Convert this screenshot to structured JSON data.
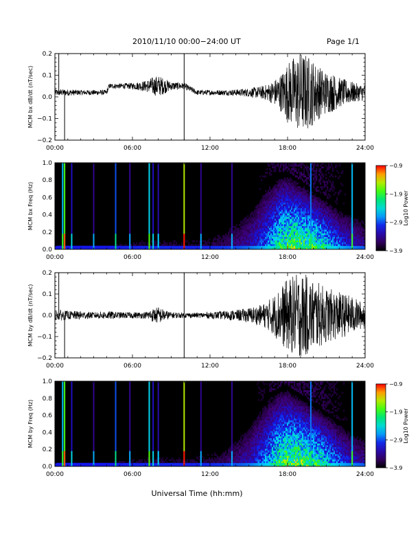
{
  "header": {
    "title": "2010/11/10   00:00−24:00 UT",
    "page": "Page 1/1"
  },
  "xlabel": "Universal Time (hh:mm)",
  "chart_data": [
    {
      "type": "line",
      "ylabel": "MCM bx dB/dt (nT/sec)",
      "xlim": [
        0,
        24
      ],
      "ylim": [
        -0.2,
        0.2
      ],
      "xticks": [
        "00:00",
        "06:00",
        "12:00",
        "18:00",
        "24:00"
      ],
      "yticks": [
        "−0.2",
        "−0.1",
        "0.0",
        "0.1",
        "0.2"
      ],
      "envelope": {
        "x": [
          0,
          0.5,
          1,
          2,
          3,
          4,
          4.2,
          5,
          6,
          7,
          7.5,
          8,
          8.5,
          9,
          10,
          11,
          12,
          13,
          14,
          15,
          16,
          16.5,
          17,
          17.5,
          18,
          18.5,
          19,
          19.5,
          20,
          20.5,
          21,
          21.5,
          22,
          22.5,
          23,
          23.5,
          24
        ],
        "baseline": [
          0.02,
          0.02,
          0.02,
          0.02,
          0.02,
          0.02,
          0.05,
          0.05,
          0.05,
          0.05,
          0.05,
          0.05,
          0.05,
          0.05,
          0.05,
          0.02,
          0.02,
          0.02,
          0.02,
          0.02,
          0.02,
          0.02,
          0.02,
          0.02,
          0.02,
          0.02,
          0.02,
          0.02,
          0.02,
          0.02,
          0.02,
          0.02,
          0.02,
          0.02,
          0.02,
          0.02,
          0.02
        ],
        "amplitude": [
          0.015,
          0.015,
          0.015,
          0.012,
          0.012,
          0.012,
          0.012,
          0.012,
          0.015,
          0.025,
          0.04,
          0.05,
          0.035,
          0.02,
          0.015,
          0.012,
          0.012,
          0.012,
          0.015,
          0.02,
          0.03,
          0.04,
          0.06,
          0.09,
          0.14,
          0.17,
          0.19,
          0.18,
          0.15,
          0.12,
          0.1,
          0.09,
          0.07,
          0.06,
          0.05,
          0.04,
          0.04
        ]
      },
      "spikes": [
        {
          "x": 0.3,
          "y": 0.2
        },
        {
          "x": 0.75,
          "y": -0.2
        },
        {
          "x": 10.0,
          "y": -0.2
        },
        {
          "x": 10.0,
          "y": 0.2
        }
      ]
    },
    {
      "type": "heatmap",
      "ylabel": "MCM bx Freq (Hz)",
      "xlim": [
        0,
        24
      ],
      "ylim": [
        0,
        1.0
      ],
      "xticks": [
        "00:00",
        "06:00",
        "12:00",
        "18:00",
        "24:00"
      ],
      "yticks": [
        "0.0",
        "0.2",
        "0.4",
        "0.6",
        "0.8",
        "1.0"
      ],
      "colorbar": {
        "label": "Log10 Power",
        "ticks": [
          "−0.9",
          "−1.9",
          "−2.9",
          "−3.9"
        ],
        "range": [
          -3.9,
          -0.9
        ]
      },
      "activity": {
        "x": [
          0,
          2,
          4,
          6,
          8,
          10,
          12,
          13,
          14,
          15,
          16,
          16.5,
          17,
          17.5,
          18,
          18.5,
          19,
          19.5,
          20,
          20.5,
          21,
          21.5,
          22,
          23,
          24
        ],
        "level": [
          0.08,
          0.08,
          0.08,
          0.1,
          0.12,
          0.1,
          0.12,
          0.15,
          0.2,
          0.3,
          0.45,
          0.55,
          0.7,
          0.85,
          0.9,
          0.95,
          0.95,
          0.9,
          0.85,
          0.8,
          0.7,
          0.6,
          0.5,
          0.35,
          0.25
        ],
        "top_freq": [
          0.15,
          0.15,
          0.15,
          0.2,
          0.2,
          0.2,
          0.25,
          0.3,
          0.4,
          0.5,
          0.7,
          0.8,
          0.85,
          0.9,
          0.9,
          0.85,
          0.8,
          0.75,
          0.7,
          0.65,
          0.6,
          0.55,
          0.5,
          0.45,
          0.4
        ]
      },
      "vertical_lines": [
        {
          "x": 0.6,
          "power": -2.6
        },
        {
          "x": 0.75,
          "power": -1.8
        },
        {
          "x": 1.3,
          "power": -3.2
        },
        {
          "x": 3.0,
          "power": -3.4
        },
        {
          "x": 4.7,
          "power": -2.9
        },
        {
          "x": 5.8,
          "power": -3.4
        },
        {
          "x": 7.3,
          "power": -2.5
        },
        {
          "x": 7.6,
          "power": -3.2
        },
        {
          "x": 8.0,
          "power": -3.3
        },
        {
          "x": 10.0,
          "power": -1.5
        },
        {
          "x": 11.3,
          "power": -3.4
        },
        {
          "x": 13.7,
          "power": -3.4
        },
        {
          "x": 19.8,
          "power": -2.8
        },
        {
          "x": 23.0,
          "power": -2.6
        }
      ]
    },
    {
      "type": "line",
      "ylabel": "MCM by dB/dt (nT/sec)",
      "xlim": [
        0,
        24
      ],
      "ylim": [
        -0.2,
        0.2
      ],
      "xticks": [
        "00:00",
        "06:00",
        "12:00",
        "18:00",
        "24:00"
      ],
      "yticks": [
        "−0.2",
        "−0.1",
        "0.0",
        "0.1",
        "0.2"
      ],
      "envelope": {
        "x": [
          0,
          0.5,
          1,
          2,
          3,
          4,
          5,
          6,
          7,
          7.5,
          8,
          8.5,
          9,
          10,
          11,
          12,
          13,
          14,
          15,
          16,
          16.5,
          17,
          17.5,
          18,
          18.5,
          19,
          19.5,
          20,
          20.5,
          21,
          21.5,
          22,
          22.5,
          23,
          23.5,
          24
        ],
        "baseline": [
          0.0,
          0.0,
          0.0,
          0.0,
          0.0,
          0.0,
          0.0,
          0.0,
          0.0,
          0.0,
          0.0,
          0.0,
          0.0,
          0.0,
          0.0,
          0.0,
          0.0,
          0.0,
          0.0,
          0.0,
          0.0,
          0.0,
          0.0,
          0.0,
          0.0,
          0.0,
          0.0,
          0.0,
          0.0,
          0.0,
          0.0,
          0.0,
          0.0,
          0.0,
          0.0,
          0.0
        ],
        "amplitude": [
          0.02,
          0.025,
          0.02,
          0.02,
          0.015,
          0.02,
          0.015,
          0.015,
          0.015,
          0.03,
          0.04,
          0.025,
          0.015,
          0.012,
          0.012,
          0.015,
          0.02,
          0.025,
          0.035,
          0.05,
          0.07,
          0.1,
          0.14,
          0.17,
          0.19,
          0.2,
          0.19,
          0.17,
          0.15,
          0.13,
          0.12,
          0.11,
          0.1,
          0.09,
          0.07,
          0.06
        ]
      },
      "spikes": [
        {
          "x": 0.3,
          "y": 0.2
        },
        {
          "x": 0.75,
          "y": -0.2
        },
        {
          "x": 10.0,
          "y": -0.2
        },
        {
          "x": 10.0,
          "y": 0.2
        }
      ]
    },
    {
      "type": "heatmap",
      "ylabel": "MCM by Freq (Hz)",
      "xlim": [
        0,
        24
      ],
      "ylim": [
        0,
        1.0
      ],
      "xticks": [
        "00:00",
        "06:00",
        "12:00",
        "18:00",
        "24:00"
      ],
      "yticks": [
        "0.0",
        "0.2",
        "0.4",
        "0.6",
        "0.8",
        "1.0"
      ],
      "colorbar": {
        "label": "Log10 Power",
        "ticks": [
          "−0.9",
          "−1.9",
          "−2.9",
          "−3.9"
        ],
        "range": [
          -3.9,
          -0.9
        ]
      },
      "activity": {
        "x": [
          0,
          2,
          4,
          6,
          8,
          10,
          12,
          13,
          14,
          15,
          16,
          16.5,
          17,
          17.5,
          18,
          18.5,
          19,
          19.5,
          20,
          20.5,
          21,
          21.5,
          22,
          23,
          24
        ],
        "level": [
          0.08,
          0.08,
          0.08,
          0.1,
          0.12,
          0.1,
          0.12,
          0.15,
          0.22,
          0.32,
          0.5,
          0.6,
          0.75,
          0.88,
          0.95,
          0.95,
          0.95,
          0.9,
          0.85,
          0.8,
          0.7,
          0.6,
          0.5,
          0.35,
          0.25
        ],
        "top_freq": [
          0.15,
          0.15,
          0.15,
          0.2,
          0.2,
          0.2,
          0.25,
          0.3,
          0.4,
          0.55,
          0.75,
          0.85,
          0.9,
          0.95,
          0.95,
          0.9,
          0.85,
          0.8,
          0.75,
          0.7,
          0.65,
          0.6,
          0.55,
          0.45,
          0.4
        ]
      },
      "vertical_lines": [
        {
          "x": 0.6,
          "power": -2.6
        },
        {
          "x": 0.75,
          "power": -1.8
        },
        {
          "x": 1.3,
          "power": -3.2
        },
        {
          "x": 3.0,
          "power": -3.4
        },
        {
          "x": 4.7,
          "power": -2.9
        },
        {
          "x": 5.8,
          "power": -3.4
        },
        {
          "x": 7.3,
          "power": -2.5
        },
        {
          "x": 7.6,
          "power": -3.2
        },
        {
          "x": 8.0,
          "power": -3.3
        },
        {
          "x": 10.0,
          "power": -1.5
        },
        {
          "x": 11.3,
          "power": -3.4
        },
        {
          "x": 13.7,
          "power": -3.4
        },
        {
          "x": 19.8,
          "power": -2.8
        },
        {
          "x": 23.0,
          "power": -2.6
        }
      ]
    }
  ]
}
